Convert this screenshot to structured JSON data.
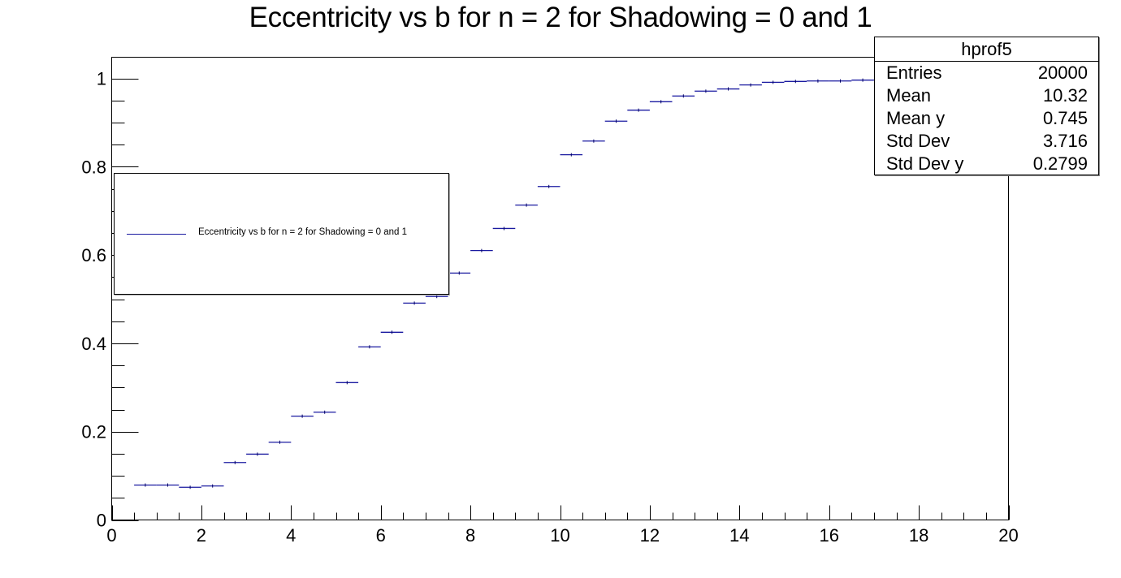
{
  "title": "Eccentricity vs b for n = 2 for Shadowing = 0 and 1",
  "legend": {
    "entries": [
      {
        "label": "Eccentricity vs b for n = 2 for Shadowing = 0 and 1",
        "color": "#1a1aa0"
      }
    ]
  },
  "stats": {
    "name": "hprof5",
    "rows": [
      {
        "key": "Entries",
        "value": "20000"
      },
      {
        "key": "Mean",
        "value": "10.32"
      },
      {
        "key": "Mean y",
        "value": "0.745"
      },
      {
        "key": "Std Dev",
        "value": "3.716"
      },
      {
        "key": "Std Dev y",
        "value": "0.2799"
      }
    ]
  },
  "chart_data": {
    "type": "line",
    "style": "profile-histogram",
    "title": "Eccentricity vs b for n = 2 for Shadowing = 0 and 1",
    "xlabel": "",
    "ylabel": "",
    "xlim": [
      0,
      20
    ],
    "ylim": [
      0,
      1.05
    ],
    "x_ticks": [
      0,
      2,
      4,
      6,
      8,
      10,
      12,
      14,
      16,
      18,
      20
    ],
    "y_ticks": [
      0,
      0.2,
      0.4,
      0.6,
      0.8,
      1
    ],
    "grid": false,
    "legend_position": "upper-left",
    "bin_width": 0.5,
    "series": [
      {
        "name": "Eccentricity vs b for n = 2 for Shadowing = 0 and 1",
        "color": "#1a1aa0",
        "x": [
          0.75,
          1.25,
          1.75,
          2.25,
          2.75,
          3.25,
          3.75,
          4.25,
          4.75,
          5.25,
          5.75,
          6.25,
          6.75,
          7.25,
          7.75,
          8.25,
          8.75,
          9.25,
          9.75,
          10.25,
          10.75,
          11.25,
          11.75,
          12.25,
          12.75,
          13.25,
          13.75,
          14.25,
          14.75,
          15.25,
          15.75,
          16.25,
          16.75,
          17.25
        ],
        "values": [
          0.079,
          0.079,
          0.074,
          0.077,
          0.13,
          0.149,
          0.176,
          0.235,
          0.244,
          0.311,
          0.392,
          0.425,
          0.491,
          0.506,
          0.559,
          0.61,
          0.66,
          0.713,
          0.755,
          0.827,
          0.858,
          0.903,
          0.928,
          0.947,
          0.96,
          0.971,
          0.976,
          0.985,
          0.991,
          0.993,
          0.994,
          0.994,
          0.996,
          0.997
        ]
      }
    ]
  }
}
